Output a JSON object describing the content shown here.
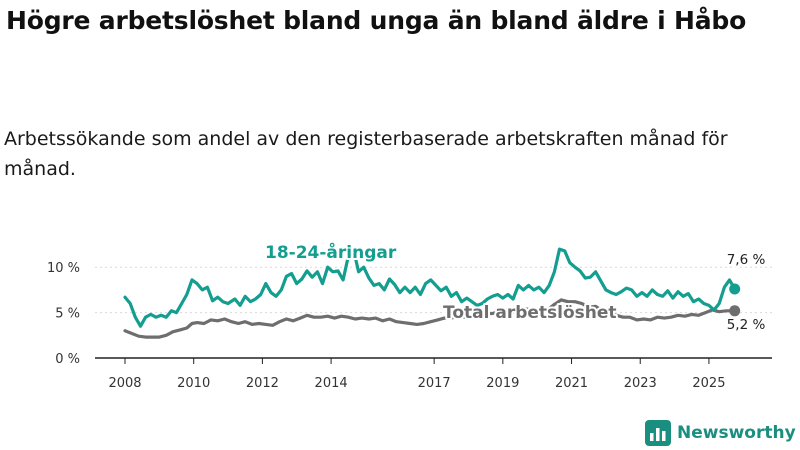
{
  "title": "Högre arbetslöshet bland unga än bland äldre i Håbo",
  "subtitle": "Arbetssökande som andel av den registerbaserade arbetskraften månad för månad.",
  "brand": {
    "name": "Newsworthy"
  },
  "colors": {
    "youth": "#139e8f",
    "total": "#6e6e6e",
    "grid": "#d9d9d9",
    "axis": "#222222"
  },
  "chart_data": {
    "type": "line",
    "title": "Högre arbetslöshet bland unga än bland äldre i Håbo",
    "xlabel": "",
    "ylabel": "",
    "ylim": [
      0,
      13
    ],
    "x_range": [
      2008,
      2026.05
    ],
    "y_ticks": [
      0,
      5,
      10
    ],
    "y_tick_labels": [
      "0 %",
      "5 %",
      "10 %"
    ],
    "x_ticks": [
      2008,
      2010,
      2012,
      2014,
      2017,
      2019,
      2021,
      2023,
      2025
    ],
    "x_tick_labels": [
      "2008",
      "2010",
      "2012",
      "2014",
      "2017",
      "2019",
      "2021",
      "2023",
      "2025"
    ],
    "grid": true,
    "series": [
      {
        "name": "18-24-åringar",
        "label": "18-24-åringar",
        "end_label": "7,6 %",
        "color": "#139e8f",
        "points": [
          [
            2008.0,
            6.7
          ],
          [
            2008.15,
            6.0
          ],
          [
            2008.3,
            4.5
          ],
          [
            2008.45,
            3.5
          ],
          [
            2008.6,
            4.5
          ],
          [
            2008.75,
            4.8
          ],
          [
            2008.9,
            4.5
          ],
          [
            2009.05,
            4.7
          ],
          [
            2009.2,
            4.5
          ],
          [
            2009.35,
            5.2
          ],
          [
            2009.5,
            5.0
          ],
          [
            2009.65,
            6.0
          ],
          [
            2009.8,
            7.0
          ],
          [
            2009.95,
            8.6
          ],
          [
            2010.1,
            8.2
          ],
          [
            2010.25,
            7.5
          ],
          [
            2010.4,
            7.8
          ],
          [
            2010.55,
            6.3
          ],
          [
            2010.7,
            6.7
          ],
          [
            2010.85,
            6.2
          ],
          [
            2011.0,
            6.0
          ],
          [
            2011.2,
            6.5
          ],
          [
            2011.35,
            5.8
          ],
          [
            2011.5,
            6.8
          ],
          [
            2011.65,
            6.2
          ],
          [
            2011.8,
            6.5
          ],
          [
            2011.95,
            7.0
          ],
          [
            2012.1,
            8.2
          ],
          [
            2012.25,
            7.2
          ],
          [
            2012.4,
            6.8
          ],
          [
            2012.55,
            7.5
          ],
          [
            2012.7,
            9.0
          ],
          [
            2012.85,
            9.3
          ],
          [
            2013.0,
            8.2
          ],
          [
            2013.15,
            8.7
          ],
          [
            2013.3,
            9.6
          ],
          [
            2013.45,
            8.9
          ],
          [
            2013.6,
            9.5
          ],
          [
            2013.75,
            8.2
          ],
          [
            2013.9,
            10.0
          ],
          [
            2014.05,
            9.5
          ],
          [
            2014.2,
            9.6
          ],
          [
            2014.35,
            8.6
          ],
          [
            2014.5,
            11.2
          ],
          [
            2014.65,
            12.0
          ],
          [
            2014.8,
            9.5
          ],
          [
            2014.95,
            10.0
          ],
          [
            2015.1,
            8.8
          ],
          [
            2015.25,
            8.0
          ],
          [
            2015.4,
            8.2
          ],
          [
            2015.55,
            7.5
          ],
          [
            2015.7,
            8.7
          ],
          [
            2015.85,
            8.1
          ],
          [
            2016.0,
            7.2
          ],
          [
            2016.15,
            7.8
          ],
          [
            2016.3,
            7.2
          ],
          [
            2016.45,
            7.8
          ],
          [
            2016.6,
            7.0
          ],
          [
            2016.75,
            8.2
          ],
          [
            2016.9,
            8.6
          ],
          [
            2017.05,
            8.0
          ],
          [
            2017.2,
            7.4
          ],
          [
            2017.35,
            7.8
          ],
          [
            2017.5,
            6.8
          ],
          [
            2017.65,
            7.2
          ],
          [
            2017.8,
            6.2
          ],
          [
            2017.95,
            6.6
          ],
          [
            2018.1,
            6.2
          ],
          [
            2018.25,
            5.8
          ],
          [
            2018.4,
            6.0
          ],
          [
            2018.55,
            6.5
          ],
          [
            2018.7,
            6.8
          ],
          [
            2018.85,
            7.0
          ],
          [
            2019.0,
            6.6
          ],
          [
            2019.15,
            7.0
          ],
          [
            2019.3,
            6.5
          ],
          [
            2019.45,
            8.0
          ],
          [
            2019.6,
            7.5
          ],
          [
            2019.75,
            8.0
          ],
          [
            2019.9,
            7.5
          ],
          [
            2020.05,
            7.8
          ],
          [
            2020.2,
            7.2
          ],
          [
            2020.35,
            8.0
          ],
          [
            2020.5,
            9.5
          ],
          [
            2020.65,
            12.0
          ],
          [
            2020.8,
            11.8
          ],
          [
            2020.95,
            10.5
          ],
          [
            2021.1,
            10.0
          ],
          [
            2021.25,
            9.6
          ],
          [
            2021.4,
            8.8
          ],
          [
            2021.55,
            8.9
          ],
          [
            2021.7,
            9.5
          ],
          [
            2021.85,
            8.5
          ],
          [
            2022.0,
            7.5
          ],
          [
            2022.15,
            7.2
          ],
          [
            2022.3,
            7.0
          ],
          [
            2022.45,
            7.3
          ],
          [
            2022.6,
            7.7
          ],
          [
            2022.75,
            7.5
          ],
          [
            2022.9,
            6.8
          ],
          [
            2023.05,
            7.2
          ],
          [
            2023.2,
            6.8
          ],
          [
            2023.35,
            7.5
          ],
          [
            2023.5,
            7.0
          ],
          [
            2023.65,
            6.8
          ],
          [
            2023.8,
            7.4
          ],
          [
            2023.95,
            6.6
          ],
          [
            2024.1,
            7.3
          ],
          [
            2024.25,
            6.8
          ],
          [
            2024.4,
            7.1
          ],
          [
            2024.55,
            6.2
          ],
          [
            2024.7,
            6.5
          ],
          [
            2024.85,
            6.0
          ],
          [
            2025.0,
            5.8
          ],
          [
            2025.15,
            5.3
          ],
          [
            2025.3,
            6.0
          ],
          [
            2025.45,
            7.8
          ],
          [
            2025.6,
            8.6
          ],
          [
            2025.75,
            7.6
          ]
        ]
      },
      {
        "name": "Total arbetslöshet",
        "label": "Total arbetslöshet",
        "end_label": "5,2 %",
        "color": "#6e6e6e",
        "points": [
          [
            2008.0,
            3.0
          ],
          [
            2008.2,
            2.7
          ],
          [
            2008.4,
            2.4
          ],
          [
            2008.6,
            2.3
          ],
          [
            2008.8,
            2.3
          ],
          [
            2009.0,
            2.3
          ],
          [
            2009.2,
            2.5
          ],
          [
            2009.4,
            2.9
          ],
          [
            2009.6,
            3.1
          ],
          [
            2009.8,
            3.3
          ],
          [
            2009.95,
            3.8
          ],
          [
            2010.1,
            3.9
          ],
          [
            2010.3,
            3.8
          ],
          [
            2010.5,
            4.2
          ],
          [
            2010.7,
            4.1
          ],
          [
            2010.9,
            4.3
          ],
          [
            2011.1,
            4.0
          ],
          [
            2011.3,
            3.8
          ],
          [
            2011.5,
            4.0
          ],
          [
            2011.7,
            3.7
          ],
          [
            2011.9,
            3.8
          ],
          [
            2012.1,
            3.7
          ],
          [
            2012.3,
            3.6
          ],
          [
            2012.5,
            4.0
          ],
          [
            2012.7,
            4.3
          ],
          [
            2012.9,
            4.1
          ],
          [
            2013.1,
            4.4
          ],
          [
            2013.3,
            4.7
          ],
          [
            2013.5,
            4.5
          ],
          [
            2013.7,
            4.5
          ],
          [
            2013.9,
            4.6
          ],
          [
            2014.1,
            4.4
          ],
          [
            2014.3,
            4.6
          ],
          [
            2014.5,
            4.5
          ],
          [
            2014.7,
            4.3
          ],
          [
            2014.9,
            4.4
          ],
          [
            2015.1,
            4.3
          ],
          [
            2015.3,
            4.4
          ],
          [
            2015.5,
            4.1
          ],
          [
            2015.7,
            4.3
          ],
          [
            2015.9,
            4.0
          ],
          [
            2016.1,
            3.9
          ],
          [
            2016.3,
            3.8
          ],
          [
            2016.5,
            3.7
          ],
          [
            2016.7,
            3.8
          ],
          [
            2016.9,
            4.0
          ],
          [
            2017.1,
            4.2
          ],
          [
            2017.3,
            4.4
          ],
          [
            2017.5,
            4.4
          ],
          [
            2017.7,
            4.6
          ],
          [
            2017.9,
            4.5
          ],
          [
            2018.1,
            4.6
          ],
          [
            2018.3,
            4.8
          ],
          [
            2018.5,
            4.9
          ],
          [
            2018.7,
            4.9
          ],
          [
            2018.9,
            5.1
          ],
          [
            2019.1,
            5.3
          ],
          [
            2019.3,
            5.1
          ],
          [
            2019.5,
            5.4
          ],
          [
            2019.7,
            5.4
          ],
          [
            2019.9,
            5.2
          ],
          [
            2020.1,
            5.0
          ],
          [
            2020.3,
            5.3
          ],
          [
            2020.5,
            5.9
          ],
          [
            2020.7,
            6.4
          ],
          [
            2020.9,
            6.2
          ],
          [
            2021.1,
            6.2
          ],
          [
            2021.3,
            6.0
          ],
          [
            2021.5,
            5.6
          ],
          [
            2021.7,
            5.7
          ],
          [
            2021.9,
            5.2
          ],
          [
            2022.1,
            5.0
          ],
          [
            2022.3,
            4.7
          ],
          [
            2022.5,
            4.5
          ],
          [
            2022.7,
            4.5
          ],
          [
            2022.9,
            4.2
          ],
          [
            2023.1,
            4.3
          ],
          [
            2023.3,
            4.2
          ],
          [
            2023.5,
            4.5
          ],
          [
            2023.7,
            4.4
          ],
          [
            2023.9,
            4.5
          ],
          [
            2024.1,
            4.7
          ],
          [
            2024.3,
            4.6
          ],
          [
            2024.5,
            4.8
          ],
          [
            2024.7,
            4.7
          ],
          [
            2024.9,
            5.0
          ],
          [
            2025.1,
            5.3
          ],
          [
            2025.3,
            5.1
          ],
          [
            2025.5,
            5.2
          ],
          [
            2025.75,
            5.2
          ]
        ]
      }
    ]
  }
}
